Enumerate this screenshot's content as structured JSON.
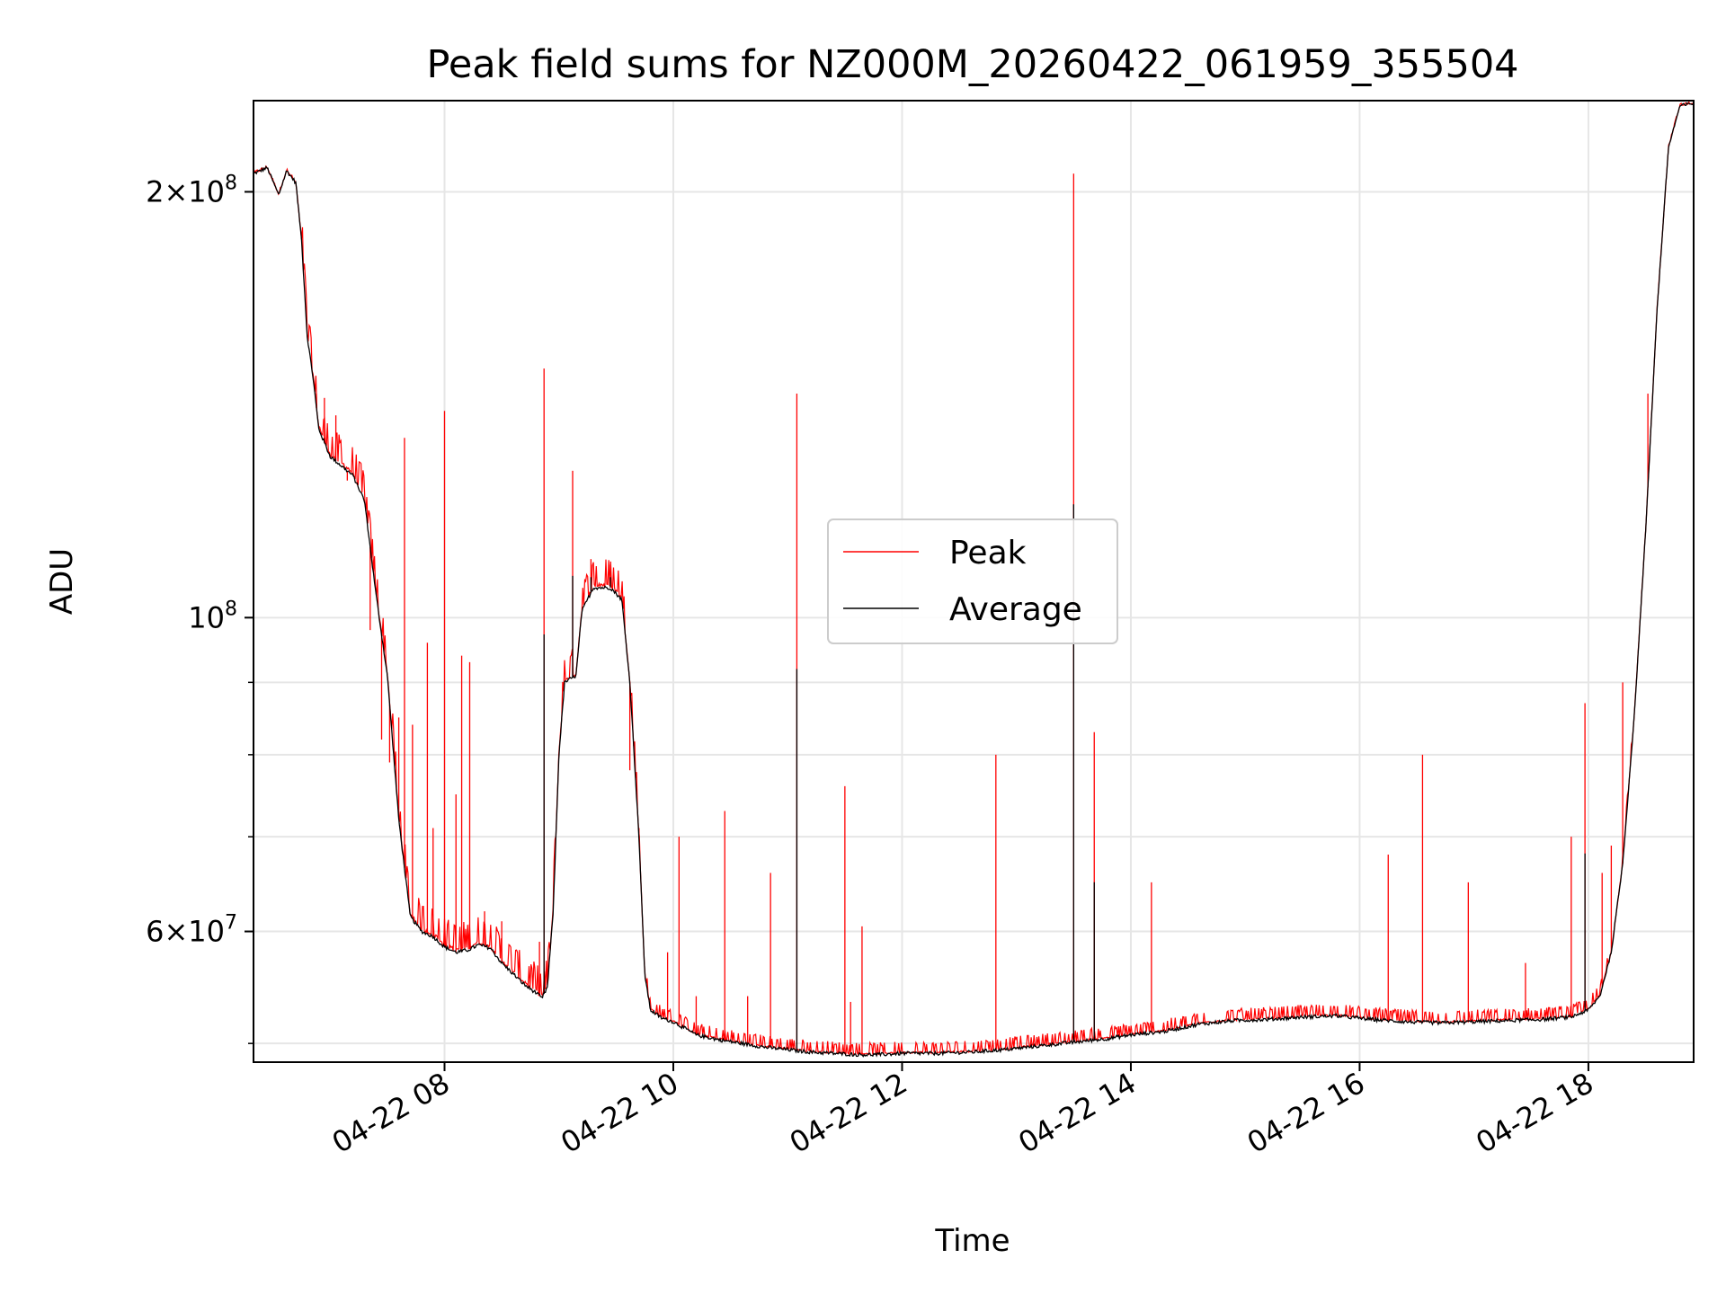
{
  "chart_data": {
    "type": "line",
    "title": "Peak field sums for NZ000M_20260422_061959_355504",
    "xlabel": "Time",
    "ylabel": "ADU",
    "yscale": "log",
    "xlim": [
      6.33,
      18.92
    ],
    "ylim": [
      48500000,
      232000000
    ],
    "grid": true,
    "x_ticks": [
      {
        "value": 8,
        "label": "04-22 08"
      },
      {
        "value": 10,
        "label": "04-22 10"
      },
      {
        "value": 12,
        "label": "04-22 12"
      },
      {
        "value": 14,
        "label": "04-22 14"
      },
      {
        "value": 16,
        "label": "04-22 16"
      },
      {
        "value": 18,
        "label": "04-22 18"
      }
    ],
    "y_major_ticks": [
      {
        "value": 60000000,
        "mantissa": "6",
        "exp": "7"
      },
      {
        "value": 100000000,
        "mantissa": "",
        "exp": "8"
      },
      {
        "value": 200000000,
        "mantissa": "2",
        "exp": "8"
      }
    ],
    "y_minor_ticks": [
      50000000,
      70000000,
      80000000,
      90000000
    ],
    "legend": {
      "position": "center",
      "entries": [
        "Peak",
        "Average"
      ]
    },
    "series": [
      {
        "name": "Average",
        "color": "#000000",
        "points": [
          [
            6.33,
            206000000
          ],
          [
            6.45,
            208000000
          ],
          [
            6.55,
            199000000
          ],
          [
            6.62,
            207000000
          ],
          [
            6.7,
            203000000
          ],
          [
            6.75,
            185000000
          ],
          [
            6.8,
            158000000
          ],
          [
            6.85,
            148000000
          ],
          [
            6.9,
            136000000
          ],
          [
            7.0,
            130000000
          ],
          [
            7.1,
            128000000
          ],
          [
            7.2,
            126000000
          ],
          [
            7.3,
            121000000
          ],
          [
            7.4,
            104000000
          ],
          [
            7.5,
            91000000
          ],
          [
            7.6,
            72000000
          ],
          [
            7.7,
            61500000
          ],
          [
            7.8,
            60000000
          ],
          [
            7.9,
            59500000
          ],
          [
            8.0,
            58500000
          ],
          [
            8.1,
            58000000
          ],
          [
            8.2,
            58200000
          ],
          [
            8.3,
            58700000
          ],
          [
            8.4,
            58400000
          ],
          [
            8.5,
            57000000
          ],
          [
            8.6,
            56000000
          ],
          [
            8.7,
            55000000
          ],
          [
            8.8,
            54300000
          ],
          [
            8.85,
            53800000
          ],
          [
            8.9,
            54800000
          ],
          [
            8.95,
            62000000
          ],
          [
            9.0,
            80000000
          ],
          [
            9.05,
            90000000
          ],
          [
            9.15,
            91000000
          ],
          [
            9.2,
            101000000
          ],
          [
            9.3,
            105000000
          ],
          [
            9.45,
            105000000
          ],
          [
            9.55,
            103000000
          ],
          [
            9.62,
            90000000
          ],
          [
            9.7,
            70000000
          ],
          [
            9.75,
            56000000
          ],
          [
            9.8,
            52800000
          ],
          [
            9.9,
            52100000
          ],
          [
            10.0,
            51800000
          ],
          [
            10.2,
            50700000
          ],
          [
            10.4,
            50300000
          ],
          [
            10.6,
            50000000
          ],
          [
            10.8,
            49700000
          ],
          [
            11.0,
            49500000
          ],
          [
            11.2,
            49300000
          ],
          [
            11.4,
            49200000
          ],
          [
            11.6,
            49100000
          ],
          [
            11.8,
            49100000
          ],
          [
            12.0,
            49200000
          ],
          [
            12.3,
            49200000
          ],
          [
            12.6,
            49300000
          ],
          [
            12.9,
            49500000
          ],
          [
            13.2,
            49800000
          ],
          [
            13.5,
            50100000
          ],
          [
            13.8,
            50400000
          ],
          [
            14.0,
            50700000
          ],
          [
            14.3,
            51000000
          ],
          [
            14.6,
            51600000
          ],
          [
            14.9,
            51900000
          ],
          [
            15.2,
            52000000
          ],
          [
            15.5,
            52200000
          ],
          [
            15.8,
            52300000
          ],
          [
            16.1,
            52000000
          ],
          [
            16.4,
            51800000
          ],
          [
            16.7,
            51700000
          ],
          [
            17.0,
            51800000
          ],
          [
            17.3,
            51900000
          ],
          [
            17.6,
            52000000
          ],
          [
            17.85,
            52200000
          ],
          [
            18.0,
            52800000
          ],
          [
            18.1,
            54000000
          ],
          [
            18.2,
            58000000
          ],
          [
            18.3,
            67000000
          ],
          [
            18.4,
            85000000
          ],
          [
            18.5,
            115000000
          ],
          [
            18.6,
            165000000
          ],
          [
            18.7,
            215000000
          ],
          [
            18.8,
            230000000
          ],
          [
            18.92,
            231000000
          ]
        ]
      },
      {
        "name": "Peak",
        "color": "#ff0000",
        "spikes": [
          [
            6.75,
            186000000
          ],
          [
            6.88,
            144000000
          ],
          [
            6.95,
            143000000
          ],
          [
            7.05,
            139000000
          ],
          [
            7.15,
            125000000
          ],
          [
            7.35,
            98000000
          ],
          [
            7.45,
            82000000
          ],
          [
            7.52,
            79000000
          ],
          [
            7.6,
            85000000
          ],
          [
            7.65,
            134000000
          ],
          [
            7.72,
            84000000
          ],
          [
            7.85,
            96000000
          ],
          [
            7.9,
            71000000
          ],
          [
            8.0,
            140000000
          ],
          [
            8.1,
            75000000
          ],
          [
            8.15,
            94000000
          ],
          [
            8.22,
            93000000
          ],
          [
            8.35,
            62000000
          ],
          [
            8.5,
            61000000
          ],
          [
            8.83,
            59000000
          ],
          [
            8.87,
            150000000
          ],
          [
            9.12,
            127000000
          ],
          [
            9.28,
            110000000
          ],
          [
            9.45,
            109000000
          ],
          [
            9.62,
            78000000
          ],
          [
            9.7,
            71000000
          ],
          [
            9.95,
            58000000
          ],
          [
            10.05,
            70000000
          ],
          [
            10.2,
            54000000
          ],
          [
            10.45,
            73000000
          ],
          [
            10.65,
            54000000
          ],
          [
            10.85,
            66000000
          ],
          [
            11.08,
            144000000
          ],
          [
            11.5,
            76000000
          ],
          [
            11.55,
            53500000
          ],
          [
            11.65,
            60500000
          ],
          [
            12.82,
            80000000
          ],
          [
            13.5,
            206000000
          ],
          [
            13.68,
            83000000
          ],
          [
            14.18,
            65000000
          ],
          [
            16.25,
            68000000
          ],
          [
            16.55,
            80000000
          ],
          [
            16.95,
            65000000
          ],
          [
            17.45,
            57000000
          ],
          [
            17.85,
            70000000
          ],
          [
            17.97,
            87000000
          ],
          [
            18.12,
            66000000
          ],
          [
            18.2,
            69000000
          ],
          [
            18.3,
            90000000
          ],
          [
            18.52,
            144000000
          ]
        ],
        "noise_regions": [
          [
            6.75,
            9.7,
            0.05
          ],
          [
            9.7,
            18.4,
            0.02
          ]
        ]
      }
    ]
  }
}
